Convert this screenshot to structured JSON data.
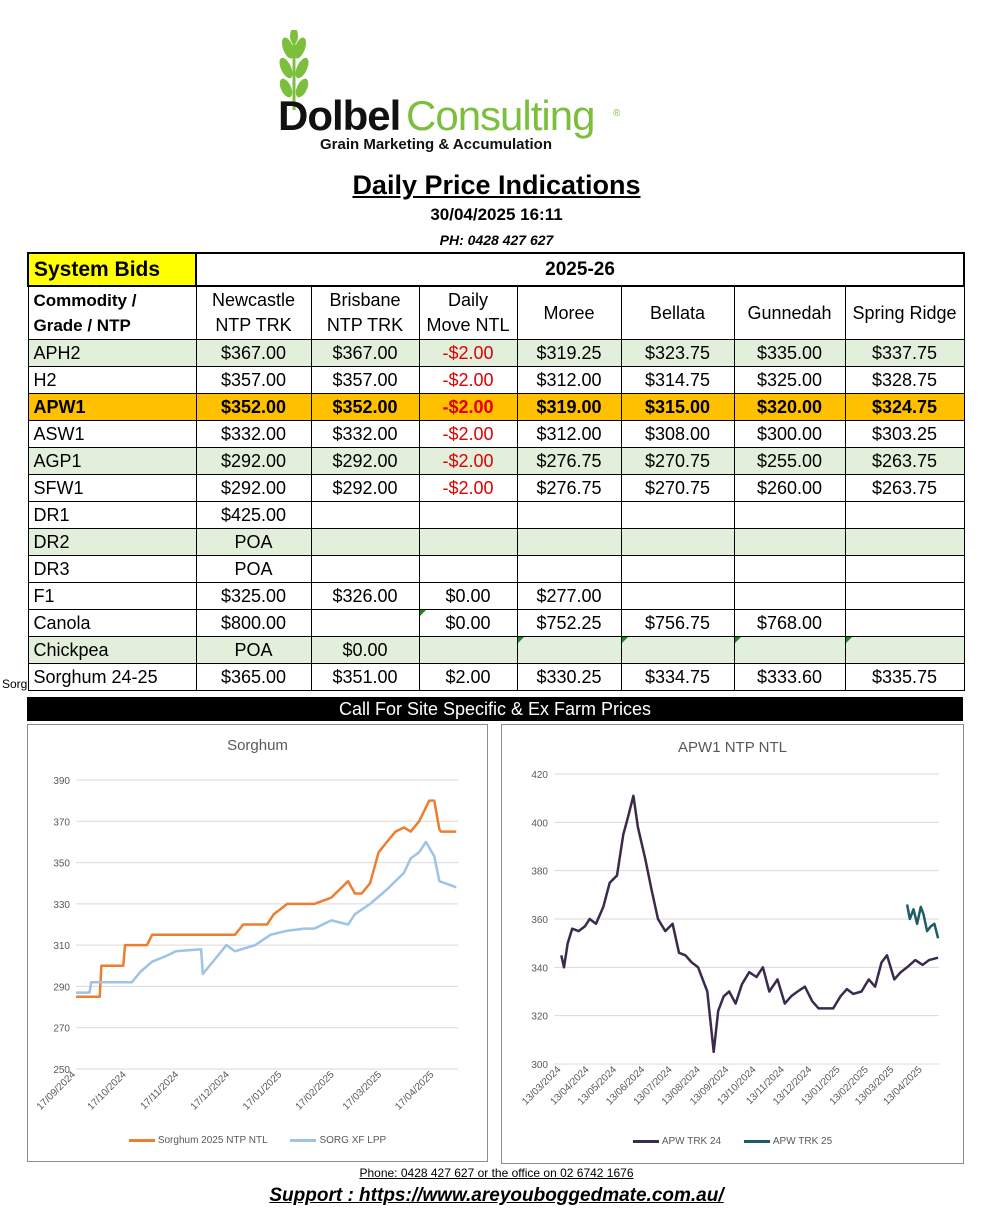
{
  "logo": {
    "brand_dark": "Dolbel",
    "brand_light": "Consulting",
    "tagline": "Grain Marketing & Accumulation"
  },
  "title": "Daily Price Indications",
  "datetime": "30/04/2025 16:11",
  "phone_header": "PH: 0428 427 627",
  "table": {
    "system_bids": "System Bids",
    "season": "2025-26",
    "headers": [
      [
        "Commodity /",
        "Grade / NTP"
      ],
      [
        "Newcastle",
        "NTP TRK"
      ],
      [
        "Brisbane",
        "NTP TRK"
      ],
      [
        "Daily",
        "Move NTL"
      ],
      [
        "Moree"
      ],
      [
        "Bellata"
      ],
      [
        "Gunnedah"
      ],
      [
        "Spring Ridge"
      ]
    ],
    "rows": [
      {
        "style": "g",
        "cells": [
          "APH2",
          "$367.00",
          "$367.00",
          "-$2.00",
          "$319.25",
          "$323.75",
          "$335.00",
          "$337.75"
        ]
      },
      {
        "style": "",
        "cells": [
          "H2",
          "$357.00",
          "$357.00",
          "-$2.00",
          "$312.00",
          "$314.75",
          "$325.00",
          "$328.75"
        ]
      },
      {
        "style": "y",
        "cells": [
          "APW1",
          "$352.00",
          "$352.00",
          "-$2.00",
          "$319.00",
          "$315.00",
          "$320.00",
          "$324.75"
        ]
      },
      {
        "style": "",
        "cells": [
          "ASW1",
          "$332.00",
          "$332.00",
          "-$2.00",
          "$312.00",
          "$308.00",
          "$300.00",
          "$303.25"
        ]
      },
      {
        "style": "g",
        "cells": [
          "AGP1",
          "$292.00",
          "$292.00",
          "-$2.00",
          "$276.75",
          "$270.75",
          "$255.00",
          "$263.75"
        ]
      },
      {
        "style": "",
        "cells": [
          "SFW1",
          "$292.00",
          "$292.00",
          "-$2.00",
          "$276.75",
          "$270.75",
          "$260.00",
          "$263.75"
        ]
      },
      {
        "style": "",
        "cells": [
          "DR1",
          "$425.00",
          "",
          "",
          "",
          "",
          "",
          ""
        ]
      },
      {
        "style": "g",
        "cells": [
          "DR2",
          "POA",
          "",
          "",
          "",
          "",
          "",
          ""
        ]
      },
      {
        "style": "",
        "cells": [
          "DR3",
          "POA",
          "",
          "",
          "",
          "",
          "",
          ""
        ]
      },
      {
        "style": "",
        "cells": [
          "F1",
          "$325.00",
          "$326.00",
          "$0.00",
          "$277.00",
          "",
          "",
          ""
        ]
      },
      {
        "style": "",
        "cells": [
          "Canola",
          "$800.00",
          "",
          "$0.00",
          "$752.25",
          "$756.75",
          "$768.00",
          ""
        ]
      },
      {
        "style": "g",
        "cells": [
          "Chickpea",
          "POA",
          "$0.00",
          "",
          "",
          "",
          "",
          ""
        ]
      },
      {
        "style": "",
        "cells": [
          "Sorghum 24-25",
          "$365.00",
          "$351.00",
          "$2.00",
          "$330.25",
          "$334.75",
          "$333.60",
          "$335.75"
        ]
      }
    ],
    "row_label_fragment": "Sorg",
    "call_bar": "Call For Site Specific & Ex Farm Prices"
  },
  "colors": {
    "header_yellow": "#ffff00",
    "green_row": "#e2efda",
    "highlight_orange": "#ffc000",
    "negative_red": "#e00000"
  },
  "chart_data": [
    {
      "type": "line",
      "title": "Sorghum",
      "ylim": [
        250,
        390
      ],
      "yticks": [
        250,
        270,
        290,
        310,
        330,
        350,
        370,
        390
      ],
      "xlim": [
        "2024-09-17",
        "2025-05-01"
      ],
      "xticks": [
        "17/09/2024",
        "17/10/2024",
        "17/11/2024",
        "17/12/2024",
        "17/01/2025",
        "17/02/2025",
        "17/03/2025",
        "17/04/2025"
      ],
      "series": [
        {
          "name": "Sorghum  2025 NTP NTL",
          "color": "#ed7d31",
          "x": [
            "2024-09-17",
            "2024-10-01",
            "2024-10-02",
            "2024-10-15",
            "2024-10-16",
            "2024-10-29",
            "2024-11-01",
            "2024-11-06",
            "2024-11-10",
            "2024-11-30",
            "2024-12-20",
            "2024-12-25",
            "2025-01-05",
            "2025-01-08",
            "2025-01-12",
            "2025-01-20",
            "2025-01-30",
            "2025-02-05",
            "2025-02-15",
            "2025-02-20",
            "2025-02-25",
            "2025-03-01",
            "2025-03-05",
            "2025-03-10",
            "2025-03-15",
            "2025-03-20",
            "2025-03-25",
            "2025-03-30",
            "2025-04-03",
            "2025-04-08",
            "2025-04-14",
            "2025-04-17",
            "2025-04-20",
            "2025-04-21",
            "2025-04-30"
          ],
          "values": [
            285,
            285,
            300,
            300,
            310,
            310,
            315,
            315,
            315,
            315,
            315,
            320,
            320,
            320,
            325,
            330,
            330,
            330,
            333,
            337,
            341,
            335,
            335,
            340,
            355,
            360,
            365,
            367,
            365,
            370,
            380,
            380,
            366,
            365,
            365
          ]
        },
        {
          "name": "SORG XF LPP",
          "color": "#9dc3e6",
          "x": [
            "2024-09-17",
            "2024-09-25",
            "2024-09-26",
            "2024-10-20",
            "2024-10-25",
            "2024-11-01",
            "2024-11-10",
            "2024-11-15",
            "2024-11-30",
            "2024-12-01",
            "2024-12-10",
            "2024-12-15",
            "2024-12-20",
            "2025-01-01",
            "2025-01-10",
            "2025-01-20",
            "2025-01-30",
            "2025-02-05",
            "2025-02-15",
            "2025-02-25",
            "2025-03-01",
            "2025-03-10",
            "2025-03-20",
            "2025-03-30",
            "2025-04-03",
            "2025-04-08",
            "2025-04-12",
            "2025-04-17",
            "2025-04-20",
            "2025-04-30"
          ],
          "values": [
            287,
            287,
            292,
            292,
            297,
            302,
            305,
            307,
            308,
            296,
            305,
            310,
            307,
            310,
            315,
            317,
            318,
            318,
            322,
            320,
            325,
            330,
            337,
            345,
            352,
            355,
            360,
            353,
            341,
            338
          ]
        }
      ]
    },
    {
      "type": "line",
      "title": "APW1 NTP NTL",
      "ylim": [
        300,
        420
      ],
      "yticks": [
        300,
        320,
        340,
        360,
        380,
        400,
        420
      ],
      "xlim": [
        "2024-03-05",
        "2025-05-01"
      ],
      "xticks": [
        "13/03/2024",
        "13/04/2024",
        "13/05/2024",
        "13/06/2024",
        "13/07/2024",
        "13/08/2024",
        "13/09/2024",
        "13/10/2024",
        "13/11/2024",
        "13/12/2024",
        "13/01/2025",
        "13/02/2025",
        "13/03/2025",
        "13/04/2025"
      ],
      "series": [
        {
          "name": "APW TRK 24",
          "color": "#3b2a4a",
          "x": [
            "2024-03-13",
            "2024-03-16",
            "2024-03-20",
            "2024-03-25",
            "2024-04-01",
            "2024-04-08",
            "2024-04-13",
            "2024-04-20",
            "2024-04-28",
            "2024-05-05",
            "2024-05-13",
            "2024-05-20",
            "2024-05-25",
            "2024-05-31",
            "2024-06-05",
            "2024-06-13",
            "2024-06-20",
            "2024-06-27",
            "2024-07-05",
            "2024-07-13",
            "2024-07-20",
            "2024-07-27",
            "2024-08-03",
            "2024-08-10",
            "2024-08-15",
            "2024-08-20",
            "2024-08-27",
            "2024-09-01",
            "2024-09-07",
            "2024-09-13",
            "2024-09-20",
            "2024-09-27",
            "2024-10-05",
            "2024-10-13",
            "2024-10-20",
            "2024-10-27",
            "2024-11-05",
            "2024-11-13",
            "2024-11-20",
            "2024-11-27",
            "2024-12-05",
            "2024-12-13",
            "2024-12-20",
            "2024-12-27",
            "2025-01-05",
            "2025-01-13",
            "2025-01-20",
            "2025-01-27",
            "2025-02-05",
            "2025-02-13",
            "2025-02-20",
            "2025-02-27",
            "2025-03-05",
            "2025-03-13",
            "2025-03-20",
            "2025-03-27",
            "2025-04-05",
            "2025-04-13",
            "2025-04-20",
            "2025-04-30"
          ],
          "values": [
            345,
            340,
            350,
            356,
            355,
            357,
            360,
            358,
            365,
            375,
            378,
            395,
            402,
            411,
            398,
            385,
            372,
            360,
            355,
            358,
            346,
            345,
            342,
            340,
            335,
            330,
            305,
            322,
            328,
            330,
            325,
            333,
            338,
            336,
            340,
            330,
            335,
            325,
            328,
            330,
            332,
            326,
            323,
            323,
            323,
            328,
            331,
            329,
            330,
            335,
            332,
            342,
            345,
            335,
            338,
            340,
            343,
            341,
            343,
            344
          ]
        },
        {
          "name": "APW TRK 25",
          "color": "#1f5d66",
          "x": [
            "2025-03-27",
            "2025-03-30",
            "2025-04-03",
            "2025-04-07",
            "2025-04-11",
            "2025-04-14",
            "2025-04-18",
            "2025-04-22",
            "2025-04-26",
            "2025-04-30"
          ],
          "values": [
            366,
            360,
            364,
            358,
            365,
            362,
            355,
            357,
            358,
            352
          ]
        }
      ]
    }
  ],
  "footer": {
    "phone": "Phone: 0428 427 627 or the office on 02 6742 1676",
    "support": "Support : https://www.areyouboggedmate.com.au/"
  }
}
